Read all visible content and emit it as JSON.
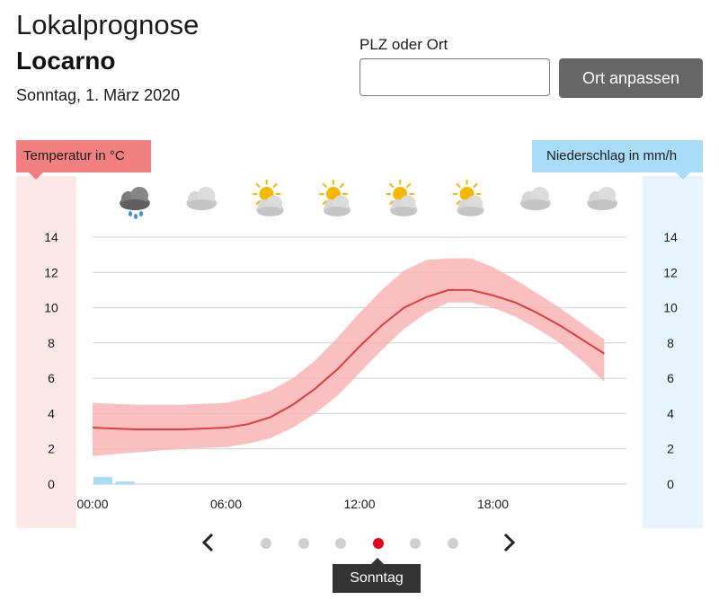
{
  "header": {
    "title": "Lokalprognose",
    "location": "Locarno",
    "date": "Sonntag, 1. März 2020"
  },
  "search": {
    "label": "PLZ oder Ort",
    "value": "",
    "placeholder": "",
    "button_label": "Ort anpassen"
  },
  "legend": {
    "temperature_label": "Temperatur in °C",
    "precip_label": "Niederschlag in mm/h"
  },
  "colors": {
    "temperature_line": "#e03c3c",
    "temperature_band": "#f9b5b5",
    "precip_bar": "#a8dcf7",
    "active_dot": "#e2001a",
    "inactive_dot": "#cfcfcf"
  },
  "weather_icons": [
    "cloud-rain-icon",
    "cloud-icon",
    "sun-cloud-icon",
    "sun-cloud-icon",
    "sun-cloud-icon",
    "sun-cloud-icon",
    "cloud-icon",
    "cloud-icon"
  ],
  "nav": {
    "prev_icon": "chevron-left-icon",
    "next_icon": "chevron-right-icon",
    "day_count": 6,
    "active_index": 3,
    "active_label": "Sonntag"
  },
  "chart_data": {
    "type": "line",
    "x_hours": [
      0,
      2,
      4,
      6,
      7,
      8,
      9,
      10,
      11,
      12,
      13,
      14,
      15,
      16,
      17,
      18,
      19,
      20,
      21,
      22,
      23
    ],
    "xticks": [
      "00:00",
      "06:00",
      "12:00",
      "18:00"
    ],
    "xtick_hours": [
      0,
      6,
      12,
      18
    ],
    "ylim": [
      0,
      14
    ],
    "yticks": [
      0,
      2,
      4,
      6,
      8,
      10,
      12,
      14
    ],
    "grid": true,
    "series": [
      {
        "kind": "temperature",
        "values": [
          3.2,
          3.1,
          3.1,
          3.2,
          3.4,
          3.8,
          4.5,
          5.4,
          6.5,
          7.8,
          9.0,
          10.0,
          10.6,
          11.0,
          11.0,
          10.7,
          10.3,
          9.7,
          9.0,
          8.2,
          7.4
        ]
      },
      {
        "kind": "temperature_upper",
        "values": [
          4.6,
          4.5,
          4.5,
          4.6,
          4.9,
          5.3,
          6.0,
          7.0,
          8.3,
          9.7,
          11.0,
          12.1,
          12.7,
          12.8,
          12.8,
          12.3,
          11.6,
          10.8,
          10.0,
          9.1,
          8.2
        ]
      },
      {
        "kind": "temperature_lower",
        "values": [
          1.6,
          1.8,
          2.0,
          2.1,
          2.3,
          2.6,
          3.2,
          4.0,
          5.0,
          6.3,
          7.6,
          8.8,
          9.7,
          10.3,
          10.3,
          10.0,
          9.5,
          8.8,
          8.0,
          7.0,
          5.8
        ]
      },
      {
        "kind": "precipitation",
        "hours": [
          0,
          1
        ],
        "values": [
          0.4,
          0.15
        ]
      }
    ]
  }
}
